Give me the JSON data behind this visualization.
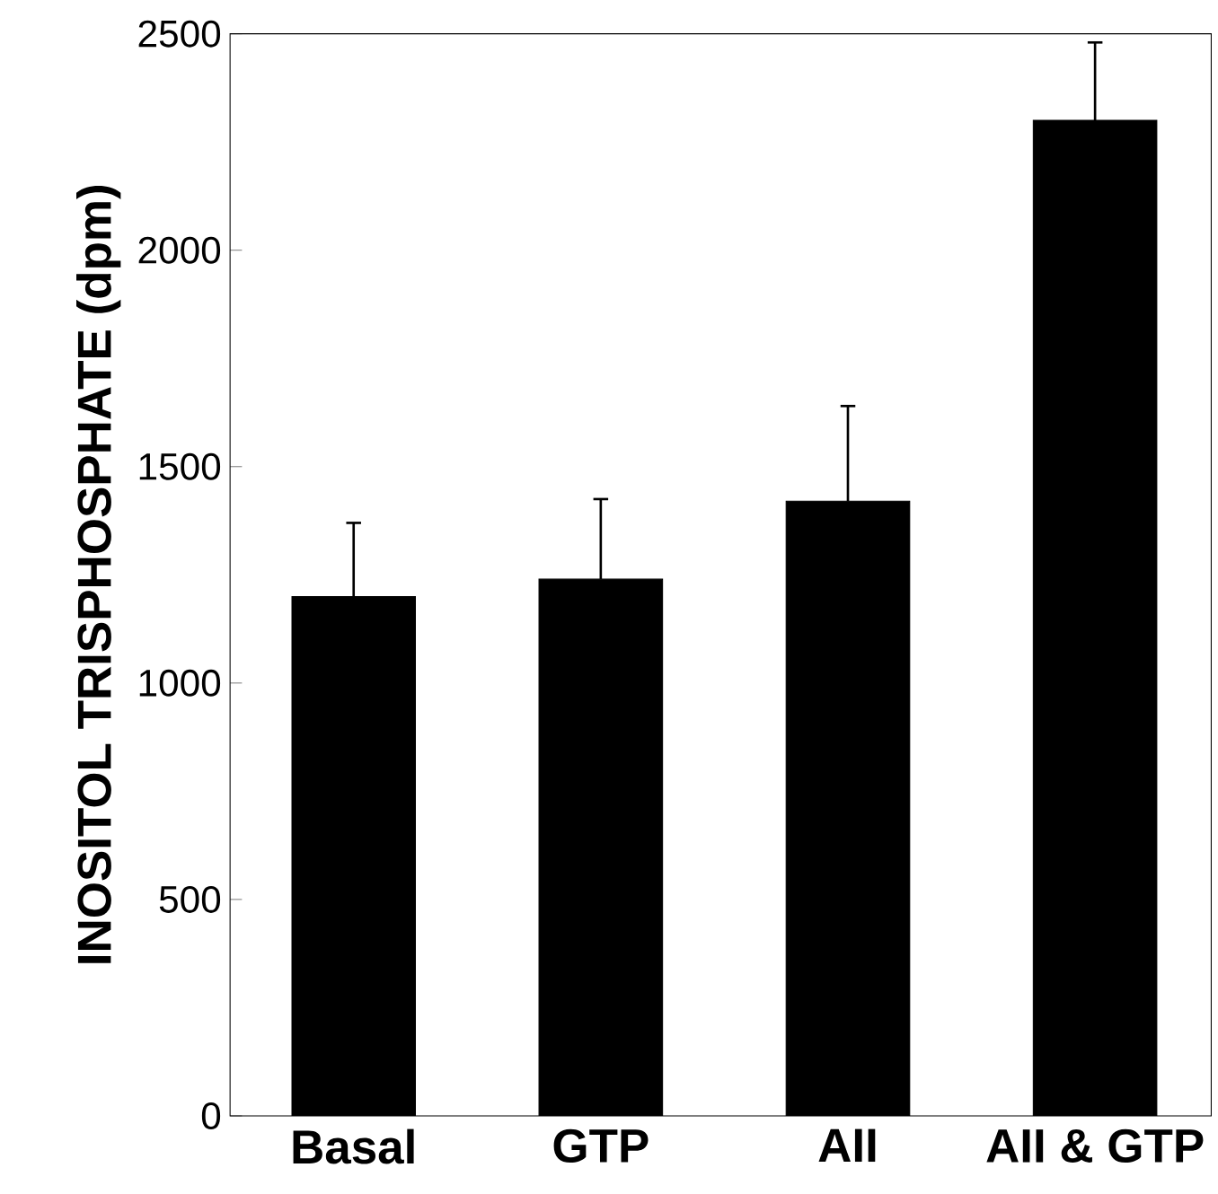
{
  "chart_data": {
    "type": "bar",
    "ylabel": "INOSITOL TRISPHOSPHATE (dpm)",
    "categories": [
      "Basal",
      "GTP",
      "AII",
      "AII & GTP"
    ],
    "values": [
      1200,
      1240,
      1420,
      2300
    ],
    "errors": [
      [
        1200,
        1370
      ],
      [
        1240,
        1425
      ],
      [
        1420,
        1640
      ],
      [
        2300,
        2480
      ]
    ],
    "color": "#000000",
    "ylim": [
      0,
      2500
    ],
    "yticks": [
      0,
      500,
      1000,
      1500,
      2000,
      2500
    ],
    "grid": false
  }
}
